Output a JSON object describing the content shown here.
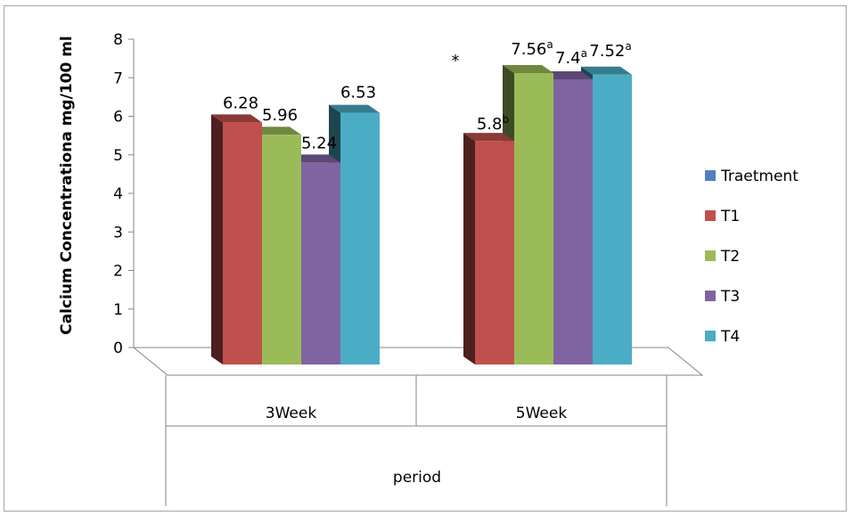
{
  "chart_data": {
    "type": "bar",
    "ylabel": "Calcium Concentrationa mg/100 ml",
    "xlabel": "period",
    "ylim": [
      0,
      8
    ],
    "yticks": [
      "0",
      "1",
      "2",
      "3",
      "4",
      "5",
      "6",
      "7",
      "8"
    ],
    "categories": [
      "3Week",
      "5Week"
    ],
    "series": [
      {
        "name": "T1",
        "color": "#c0504d",
        "values": [
          6.28,
          5.8
        ],
        "labels": [
          "6.28",
          "5.8"
        ],
        "sup": [
          "",
          "b"
        ]
      },
      {
        "name": "T2",
        "color": "#9bbb59",
        "values": [
          5.96,
          7.56
        ],
        "labels": [
          "5.96",
          "7.56"
        ],
        "sup": [
          "",
          "a"
        ]
      },
      {
        "name": "T3",
        "color": "#8064a2",
        "values": [
          5.24,
          7.4
        ],
        "labels": [
          "5.24",
          "7.4"
        ],
        "sup": [
          "",
          "a"
        ]
      },
      {
        "name": "T4",
        "color": "#4bacc6",
        "values": [
          6.53,
          7.52
        ],
        "labels": [
          "6.53",
          "7.52"
        ],
        "sup": [
          "",
          "a"
        ]
      }
    ],
    "legend_header": {
      "name": "Traetment",
      "color": "#4f81bd"
    },
    "legend_position": "right",
    "annotation": "*",
    "grid": false
  }
}
